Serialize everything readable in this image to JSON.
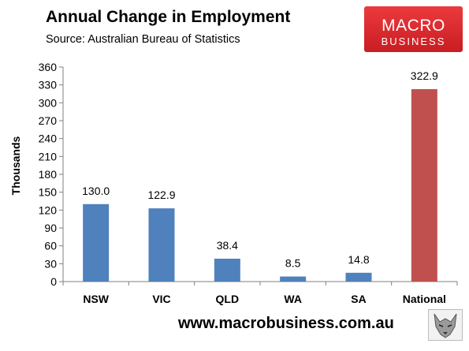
{
  "header": {
    "title": "Annual Change in Employment",
    "subtitle": "Source: Australian Bureau of Statistics"
  },
  "logo": {
    "line1": "MACRO",
    "line2": "BUSINESS",
    "bg_color": "#e2252a",
    "text_color": "#ffffff"
  },
  "footer": {
    "url": "www.macrobusiness.com.au",
    "icon": "wolf-icon"
  },
  "colors": {
    "state_bar": "#4f81bd",
    "national_bar": "#c0504d"
  },
  "chart_data": {
    "type": "bar",
    "title": "Annual Change in Employment",
    "xlabel": "",
    "ylabel": "Thousands",
    "categories": [
      "NSW",
      "VIC",
      "QLD",
      "WA",
      "SA",
      "National"
    ],
    "values": [
      130.0,
      122.9,
      38.4,
      8.5,
      14.8,
      322.9
    ],
    "data_labels": [
      "130.0",
      "122.9",
      "38.4",
      "8.5",
      "14.8",
      "322.9"
    ],
    "ylim": [
      0,
      360
    ],
    "yticks": [
      0,
      30,
      60,
      90,
      120,
      150,
      180,
      210,
      240,
      270,
      300,
      330,
      360
    ],
    "grid": false,
    "legend": "none"
  }
}
